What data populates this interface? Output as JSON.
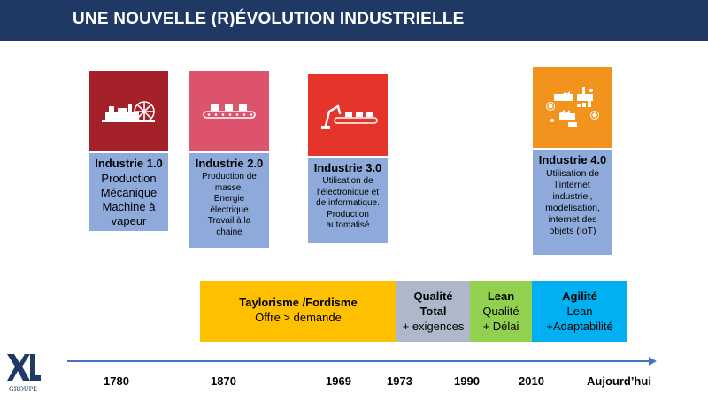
{
  "header": {
    "title": "UNE NOUVELLE (R)ÉVOLUTION INDUSTRIELLE"
  },
  "industries": [
    {
      "name": "Industrie 1.0",
      "lines": [
        "Production",
        "Mécanique",
        "Machine à",
        "vapeur"
      ],
      "color": "#a5212a",
      "icon": "steam-engine-icon"
    },
    {
      "name": "Industrie 2.0",
      "lines": [
        "Production de",
        "masse.",
        "Energie",
        "électrique",
        "Travail à la",
        "chaine"
      ],
      "color": "#dd536b",
      "icon": "conveyor-belt-icon"
    },
    {
      "name": "Industrie 3.0",
      "lines": [
        "Utilisation de",
        "l’électronique  et",
        "de informatique.",
        "Production",
        "automatisé"
      ],
      "color": "#e5342a",
      "icon": "robot-arm-icon"
    },
    {
      "name": "Industrie 4.0",
      "lines": [
        "Utilisation de",
        "l’internet",
        "industriel,",
        "modélisation,",
        "internet des",
        "objets (IoT)"
      ],
      "color": "#f2931e",
      "icon": "smart-factory-icon"
    }
  ],
  "eras": [
    {
      "title": "Taylorisme /Fordisme",
      "desc": [
        "Offre > demande"
      ],
      "color": "#ffc000"
    },
    {
      "title": "Qualité",
      "desc": [
        "Total",
        "+ exigences"
      ],
      "color": "#adb9ca"
    },
    {
      "title": "Lean",
      "desc": [
        "Qualité",
        "+ Délai"
      ],
      "color": "#92d050"
    },
    {
      "title": "Agilité",
      "desc": [
        "Lean",
        "+Adaptabilité"
      ],
      "color": "#00b0f0"
    }
  ],
  "timeline": {
    "years": [
      "1780",
      "1870",
      "1969",
      "1973",
      "1990",
      "2010",
      "Aujourd’hui"
    ]
  },
  "logo": {
    "text": "XL",
    "sub": "GROUPE"
  },
  "colors": {
    "header": "#1f3864",
    "card": "#8eaadb",
    "axis": "#4472c4"
  }
}
